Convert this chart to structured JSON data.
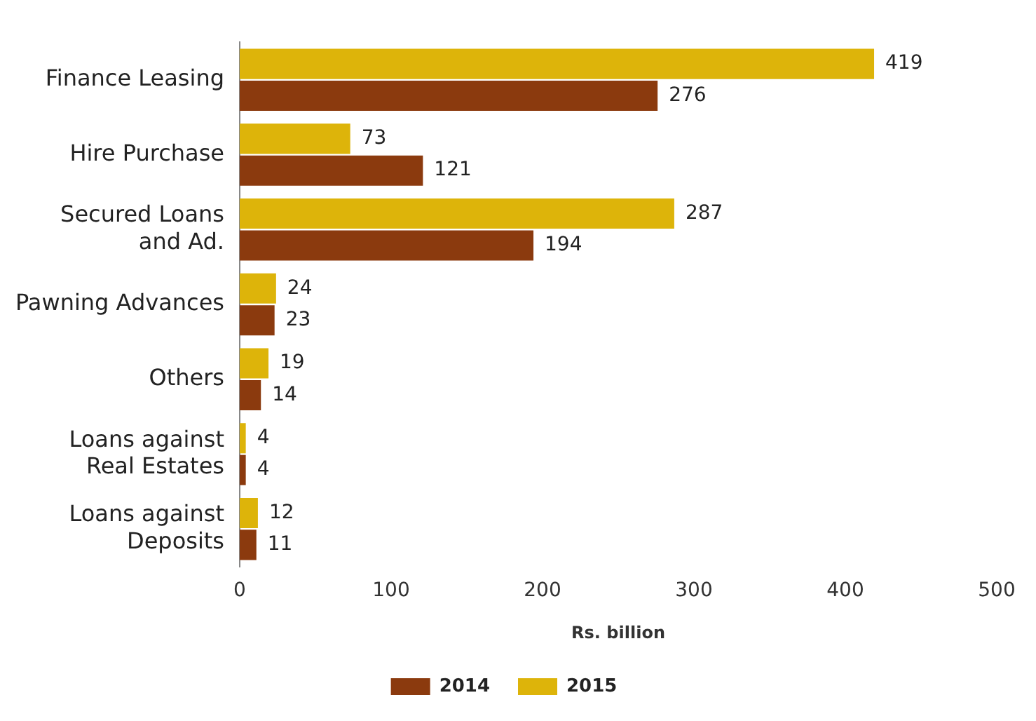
{
  "chart_data": {
    "type": "bar",
    "orientation": "horizontal",
    "xlabel": "Rs. billion",
    "categories": [
      "Finance Leasing",
      "Hire Purchase",
      "Secured Loans\nand Ad.",
      "Pawning Advances",
      "Others",
      "Loans against\nReal Estates",
      "Loans against\nDeposits"
    ],
    "series": [
      {
        "name": "2014",
        "color": "#8b3a0e",
        "values": [
          276,
          121,
          194,
          23,
          14,
          4,
          11
        ]
      },
      {
        "name": "2015",
        "color": "#ddb40a",
        "values": [
          419,
          73,
          287,
          24,
          19,
          4,
          12
        ]
      }
    ],
    "xlim": [
      0,
      500
    ],
    "xticks": [
      0,
      100,
      200,
      300,
      400,
      500
    ],
    "grid": false,
    "legend": "bottom",
    "data_labels": true
  }
}
